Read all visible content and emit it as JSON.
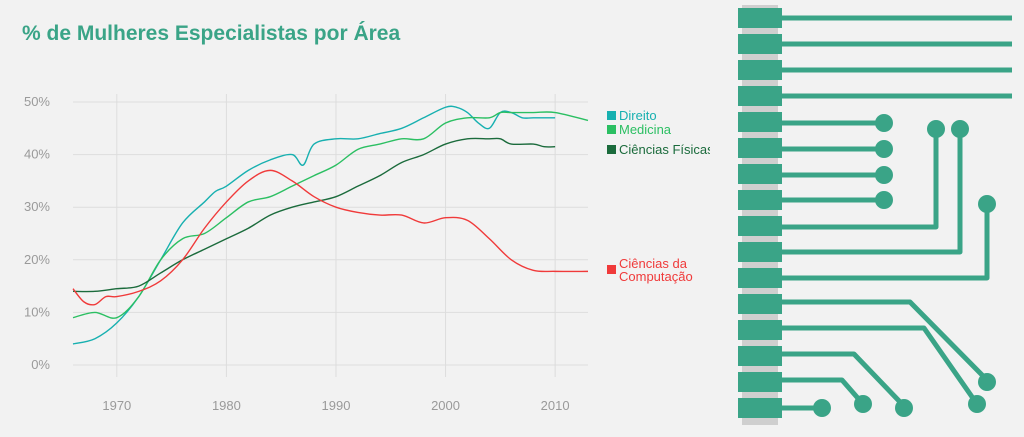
{
  "chart_data": {
    "type": "line",
    "title": "% de Mulheres Especialistas por Área",
    "xlabel": "",
    "ylabel": "",
    "xlim": [
      1966,
      2013
    ],
    "ylim": [
      0,
      50
    ],
    "x_ticks": [
      1970,
      1980,
      1990,
      2000,
      2010
    ],
    "y_ticks": [
      0,
      10,
      20,
      30,
      40,
      50
    ],
    "y_tick_labels": [
      "0%",
      "10%",
      "20%",
      "30%",
      "40%",
      "50%"
    ],
    "grid": true,
    "legend_position": "right",
    "series": [
      {
        "name": "Direito",
        "color": "#17b0b0",
        "x": [
          1966,
          1968,
          1970,
          1972,
          1974,
          1976,
          1978,
          1979,
          1980,
          1982,
          1984,
          1986,
          1987,
          1988,
          1990,
          1992,
          1994,
          1996,
          1998,
          2000,
          2001,
          2002,
          2003,
          2004,
          2005,
          2006,
          2007,
          2008,
          2010
        ],
        "y": [
          4,
          5,
          8,
          13,
          20,
          27,
          31,
          33,
          34,
          37,
          39,
          40,
          38,
          42,
          43,
          43,
          44,
          45,
          47,
          49,
          49,
          48,
          46,
          45,
          48,
          48,
          47,
          47,
          47
        ]
      },
      {
        "name": "Medicina",
        "color": "#2bbf62",
        "x": [
          1966,
          1968,
          1970,
          1972,
          1974,
          1976,
          1978,
          1980,
          1982,
          1984,
          1986,
          1988,
          1990,
          1992,
          1994,
          1996,
          1998,
          2000,
          2002,
          2004,
          2005,
          2006,
          2008,
          2010,
          2013
        ],
        "y": [
          9,
          10,
          9,
          13,
          20,
          24,
          25,
          28,
          31,
          32,
          34,
          36,
          38,
          41,
          42,
          43,
          43,
          46,
          47,
          47,
          48,
          48,
          48,
          48,
          46.5
        ]
      },
      {
        "name": "Ciências Físicas",
        "color": "#1b6b3c",
        "x": [
          1966,
          1968,
          1970,
          1972,
          1974,
          1976,
          1978,
          1980,
          1982,
          1984,
          1986,
          1988,
          1990,
          1992,
          1994,
          1996,
          1998,
          2000,
          2002,
          2004,
          2005,
          2006,
          2008,
          2009,
          2010
        ],
        "y": [
          14,
          14,
          14.5,
          15,
          17.5,
          20,
          22,
          24,
          26,
          28.5,
          30,
          31,
          32,
          34,
          36,
          38.5,
          40,
          42,
          43,
          43,
          43,
          42,
          42,
          41.5,
          41.5
        ]
      },
      {
        "name": "Ciências da Computação",
        "color": "#f03a3a",
        "x": [
          1966,
          1967,
          1968,
          1969,
          1970,
          1972,
          1974,
          1976,
          1978,
          1980,
          1982,
          1984,
          1986,
          1988,
          1990,
          1992,
          1994,
          1996,
          1998,
          2000,
          2002,
          2004,
          2006,
          2008,
          2010,
          2013
        ],
        "y": [
          14.5,
          12,
          11.5,
          13,
          13,
          14,
          16,
          20,
          26,
          31,
          35,
          37,
          35,
          32,
          30,
          29,
          28.5,
          28.5,
          27,
          28,
          27.5,
          24,
          20,
          18,
          17.8,
          17.8
        ]
      }
    ]
  }
}
